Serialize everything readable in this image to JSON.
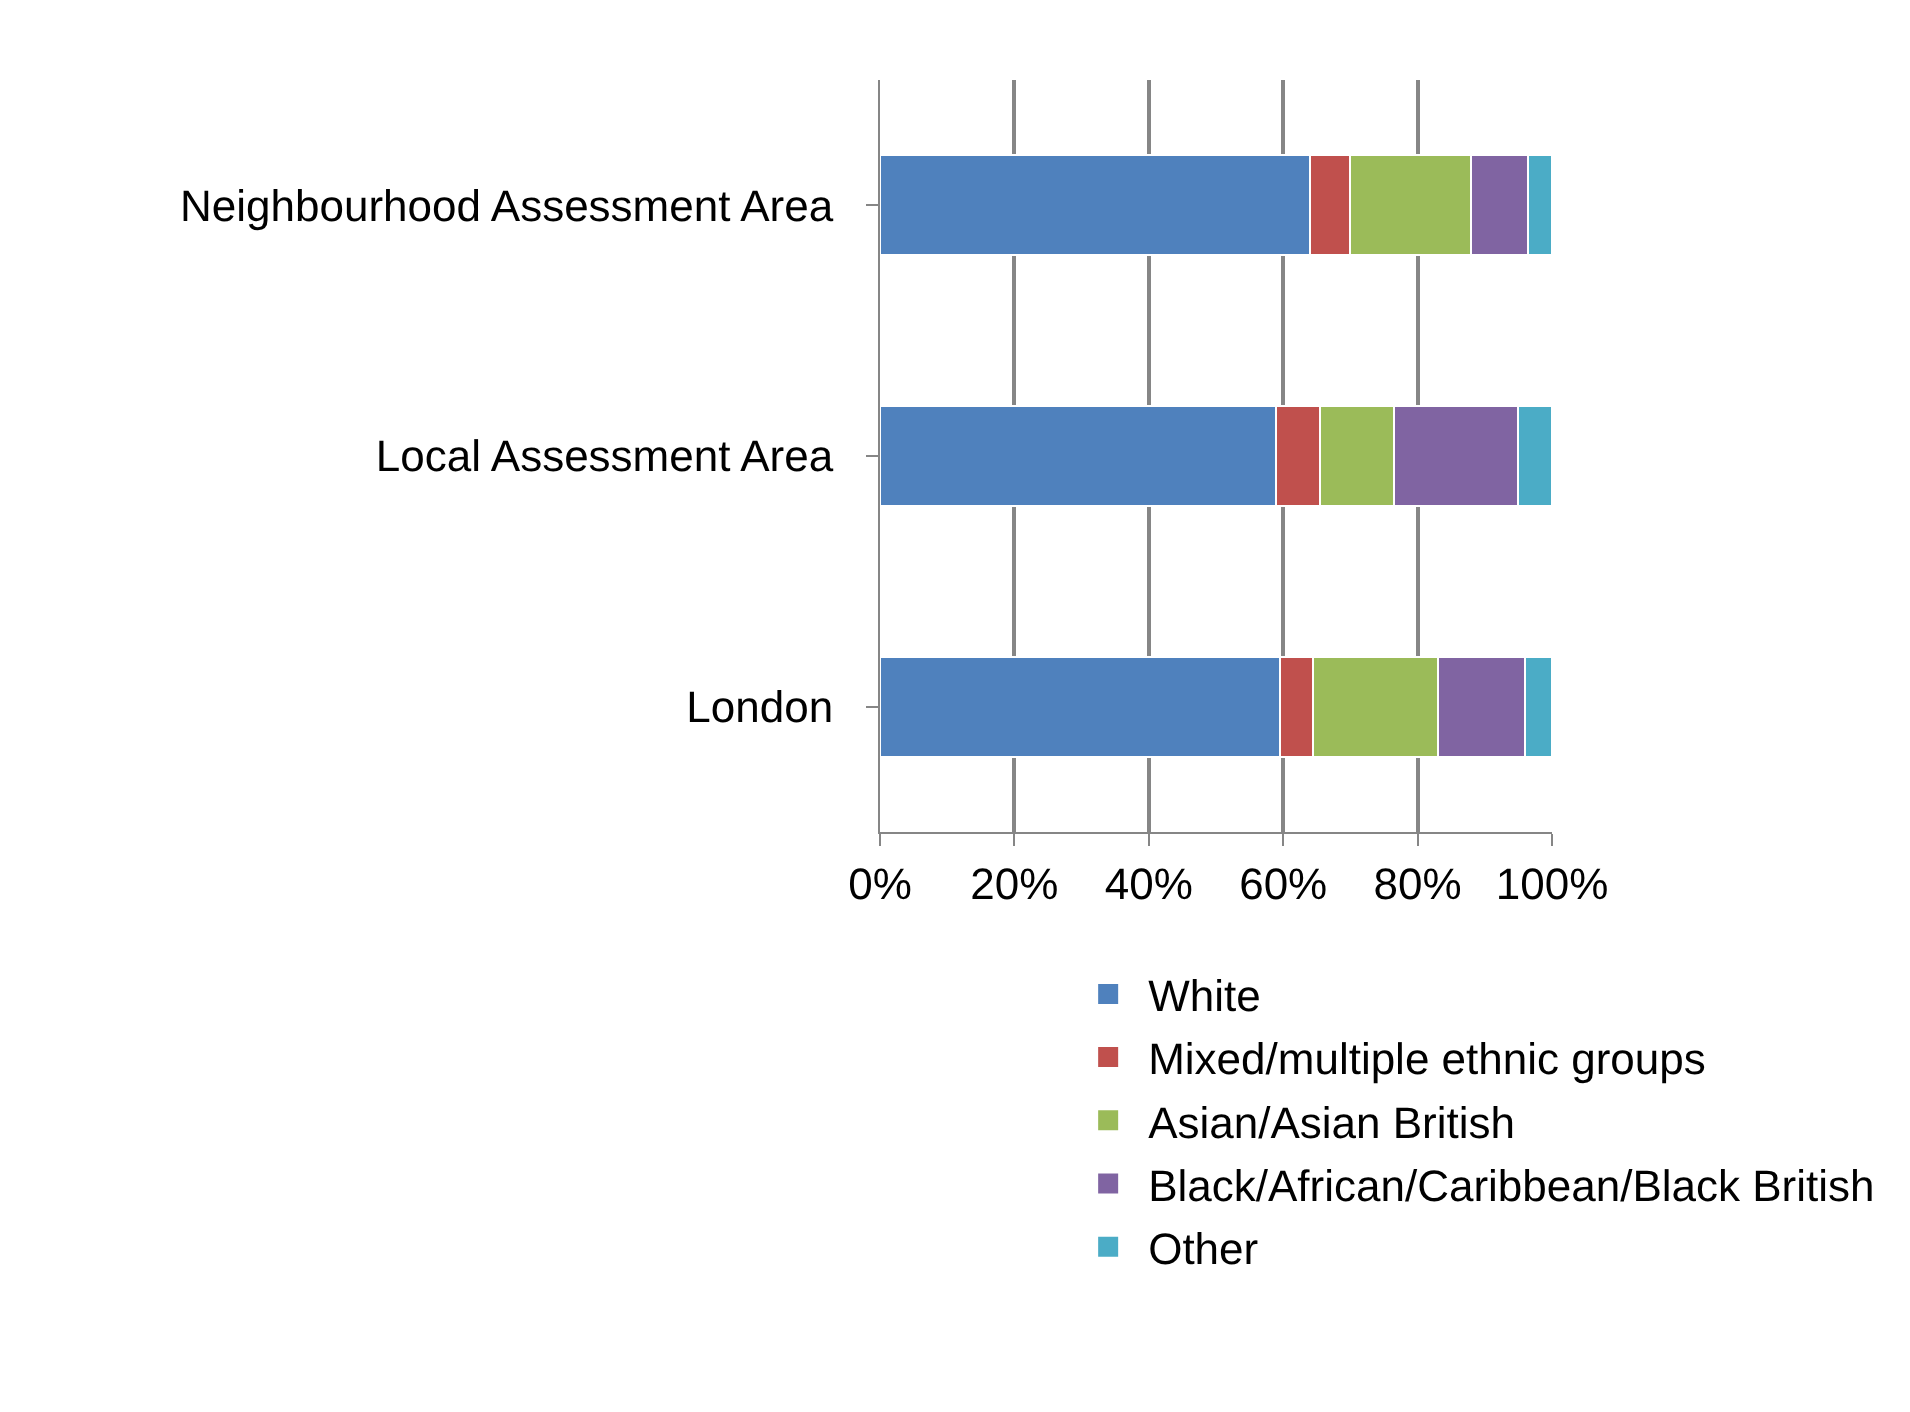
{
  "chart_data": {
    "type": "bar",
    "orientation": "horizontal",
    "stacked": true,
    "categories": [
      "Neighbourhood Assessment Area",
      "Local Assessment Area",
      "London"
    ],
    "series": [
      {
        "name": "White",
        "color": "#4f81bd",
        "values": [
          64,
          59,
          59.5
        ]
      },
      {
        "name": "Mixed/multiple ethnic groups",
        "color": "#c0504d",
        "values": [
          6,
          6.5,
          5
        ]
      },
      {
        "name": "Asian/Asian British",
        "color": "#9bbb59",
        "values": [
          18,
          11,
          18.5
        ]
      },
      {
        "name": "Black/African/Caribbean/Black British",
        "color": "#8064a2",
        "values": [
          8.5,
          18.5,
          13
        ]
      },
      {
        "name": "Other",
        "color": "#4bacc6",
        "values": [
          3.5,
          5,
          4
        ]
      }
    ],
    "xlim": [
      0,
      100
    ],
    "xticks": [
      {
        "value": 0,
        "label": "0%"
      },
      {
        "value": 20,
        "label": "20%"
      },
      {
        "value": 40,
        "label": "40%"
      },
      {
        "value": 60,
        "label": "60%"
      },
      {
        "value": 80,
        "label": "80%"
      },
      {
        "value": 100,
        "label": "100%"
      }
    ],
    "grid": "x",
    "legend": "bottom"
  }
}
